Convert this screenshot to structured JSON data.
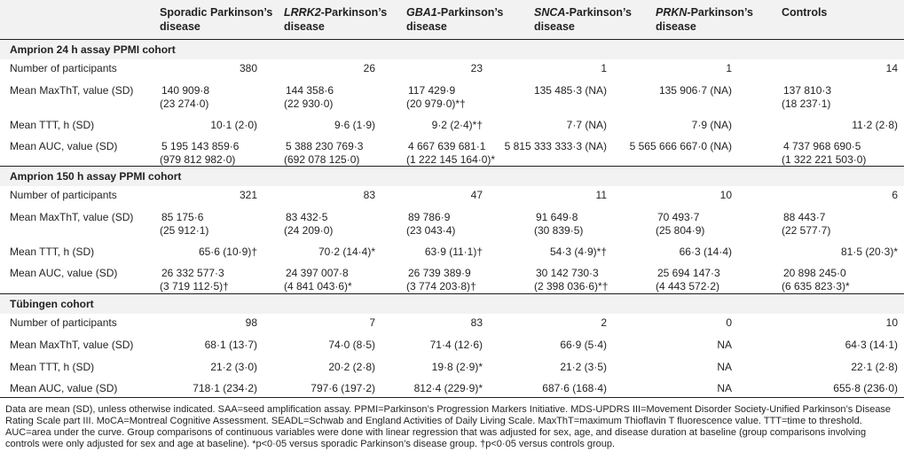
{
  "columns": [
    {
      "prefix": "",
      "italic": "",
      "suffix": "Sporadic Parkinson’s disease"
    },
    {
      "prefix": "",
      "italic": "LRRK2",
      "suffix": "-Parkinson’s disease"
    },
    {
      "prefix": "",
      "italic": "GBA1",
      "suffix": "-Parkinson’s disease"
    },
    {
      "prefix": "",
      "italic": "SNCA",
      "suffix": "-Parkinson’s disease"
    },
    {
      "prefix": "",
      "italic": "PRKN",
      "suffix": "-Parkinson’s disease"
    },
    {
      "prefix": "",
      "italic": "",
      "suffix": "Controls"
    }
  ],
  "sections": [
    {
      "title": "Amprion 24 h assay PPMI cohort",
      "rows": [
        {
          "label": "Number of participants",
          "cells": [
            [
              "380",
              ""
            ],
            [
              "26",
              ""
            ],
            [
              "23",
              ""
            ],
            [
              "1",
              ""
            ],
            [
              "1",
              ""
            ],
            [
              "14",
              ""
            ]
          ]
        },
        {
          "label": "Mean MaxThT, value (SD)",
          "cells": [
            [
              "140 909·8",
              "(23 274·0)"
            ],
            [
              "144 358·6",
              "(22 930·0)"
            ],
            [
              "117 429·9",
              "(20 979·0)*†"
            ],
            [
              "135 485·3 (NA)",
              ""
            ],
            [
              "135 906·7 (NA)",
              ""
            ],
            [
              "137 810·3",
              "(18 237·1)"
            ]
          ]
        },
        {
          "label": "Mean TTT, h (SD)",
          "cells": [
            [
              "10·1 (2·0)",
              ""
            ],
            [
              "9·6 (1·9)",
              ""
            ],
            [
              "9·2 (2·4)*†",
              ""
            ],
            [
              "7·7 (NA)",
              ""
            ],
            [
              "7·9 (NA)",
              ""
            ],
            [
              "11·2 (2·8)",
              ""
            ]
          ]
        },
        {
          "label": "Mean AUC, value (SD)",
          "cells": [
            [
              "5 195 143 859·6",
              "(979 812 982·0)"
            ],
            [
              "5 388 230 769·3",
              "(692 078 125·0)"
            ],
            [
              "4 667 639 681·1",
              "(1 222 145 164·0)*"
            ],
            [
              "5 815 333 333·3 (NA)",
              ""
            ],
            [
              "5 565 666 667·0 (NA)",
              ""
            ],
            [
              "4 737 968 690·5",
              "(1 322 221 503·0)"
            ]
          ]
        }
      ]
    },
    {
      "title": "Amprion 150 h assay PPMI cohort",
      "rows": [
        {
          "label": "Number of participants",
          "cells": [
            [
              "321",
              ""
            ],
            [
              "83",
              ""
            ],
            [
              "47",
              ""
            ],
            [
              "11",
              ""
            ],
            [
              "10",
              ""
            ],
            [
              "6",
              ""
            ]
          ]
        },
        {
          "label": "Mean MaxThT, value (SD)",
          "cells": [
            [
              "85 175·6",
              "(25 912·1)"
            ],
            [
              "83 432·5",
              "(24 209·0)"
            ],
            [
              "89 786·9",
              "(23 043·4)"
            ],
            [
              "91 649·8",
              "(30 839·5)"
            ],
            [
              "70 493·7",
              "(25 804·9)"
            ],
            [
              "88 443·7",
              "(22 577·7)"
            ]
          ]
        },
        {
          "label": "Mean TTT, h (SD)",
          "cells": [
            [
              "65·6 (10·9)†",
              ""
            ],
            [
              "70·2 (14·4)*",
              ""
            ],
            [
              "63·9 (11·1)†",
              ""
            ],
            [
              "54·3 (4·9)*†",
              ""
            ],
            [
              "66·3 (14·4)",
              ""
            ],
            [
              "81·5 (20·3)*",
              ""
            ]
          ]
        },
        {
          "label": "Mean AUC, value (SD)",
          "cells": [
            [
              "26 332 577·3",
              "(3 719 112·5)†"
            ],
            [
              "24 397 007·8",
              "(4 841 043·6)*"
            ],
            [
              "26 739 389·9",
              "(3 774 203·8)†"
            ],
            [
              "30 142 730·3",
              "(2 398 036·6)*†"
            ],
            [
              "25 694 147·3",
              "(4 443 572·2)"
            ],
            [
              "20 898 245·0",
              "(6 635 823·3)*"
            ]
          ]
        }
      ]
    },
    {
      "title": "Tübingen cohort",
      "rows": [
        {
          "label": "Number of participants",
          "cells": [
            [
              "98",
              ""
            ],
            [
              "7",
              ""
            ],
            [
              "83",
              ""
            ],
            [
              "2",
              ""
            ],
            [
              "0",
              ""
            ],
            [
              "10",
              ""
            ]
          ]
        },
        {
          "label": "Mean MaxThT, value (SD)",
          "cells": [
            [
              "68·1 (13·7)",
              ""
            ],
            [
              "74·0 (8·5)",
              ""
            ],
            [
              "71·4 (12·6)",
              ""
            ],
            [
              "66·9 (5·4)",
              ""
            ],
            [
              "NA",
              ""
            ],
            [
              "64·3 (14·1)",
              ""
            ]
          ]
        },
        {
          "label": "Mean TTT, h (SD)",
          "cells": [
            [
              "21·2 (3·0)",
              ""
            ],
            [
              "20·2 (2·8)",
              ""
            ],
            [
              "19·8 (2·9)*",
              ""
            ],
            [
              "21·2 (3·5)",
              ""
            ],
            [
              "NA",
              ""
            ],
            [
              "22·1 (2·8)",
              ""
            ]
          ]
        },
        {
          "label": "Mean AUC, value (SD)",
          "cells": [
            [
              "718·1 (234·2)",
              ""
            ],
            [
              "797·6 (197·2)",
              ""
            ],
            [
              "812·4 (229·9)*",
              ""
            ],
            [
              "687·6 (168·4)",
              ""
            ],
            [
              "NA",
              ""
            ],
            [
              "655·8 (236·0)",
              ""
            ]
          ]
        }
      ]
    }
  ],
  "footnote": "Data are mean (SD), unless otherwise indicated. SAA=seed amplification assay. PPMI=Parkinson’s Progression Markers Initiative. MDS-UPDRS III=Movement Disorder Society-Unified Parkinson’s Disease Rating Scale part III. MoCA=Montreal Cognitive Assessment. SEADL=Schwab and England Activities of Daily Living Scale. MaxThT=maximum Thioflavin T fluorescence value. TTT=time to threshold. AUC=area under the curve. Group comparisons of continuous variables were done with linear regression that was adjusted for sex, age, and disease duration at baseline (group comparisons involving controls were only adjusted for sex and age at baseline). *p<0·05 versus sporadic Parkinson’s disease group. †p<0·05 versus controls group."
}
